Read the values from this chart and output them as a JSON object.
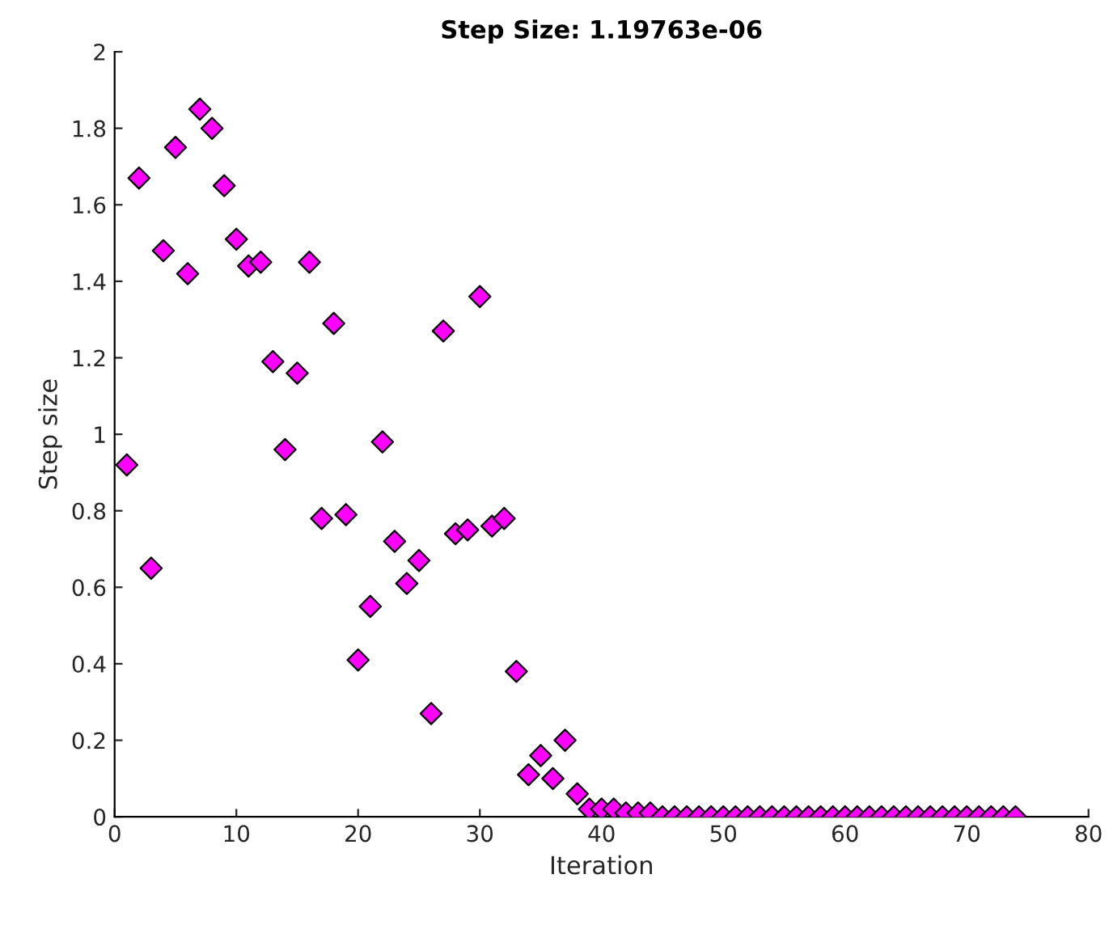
{
  "chart_data": {
    "type": "scatter",
    "title": "Step Size: 1.19763e-06",
    "xlabel": "Iteration",
    "ylabel": "Step size",
    "x": [
      1,
      2,
      3,
      4,
      5,
      6,
      7,
      8,
      9,
      10,
      11,
      12,
      13,
      14,
      15,
      16,
      17,
      18,
      19,
      20,
      21,
      22,
      23,
      24,
      25,
      26,
      27,
      28,
      29,
      30,
      31,
      32,
      33,
      34,
      35,
      36,
      37,
      38,
      39,
      40,
      41,
      42,
      43,
      44,
      45,
      46,
      47,
      48,
      49,
      50,
      51,
      52,
      53,
      54,
      55,
      56,
      57,
      58,
      59,
      60,
      61,
      62,
      63,
      64,
      65,
      66,
      67,
      68,
      69,
      70,
      71,
      72,
      73,
      74
    ],
    "series": [
      {
        "color": "#ff00ff",
        "values": [
          0.92,
          1.67,
          0.65,
          1.48,
          1.75,
          1.42,
          1.85,
          1.8,
          1.65,
          1.51,
          1.44,
          1.45,
          1.19,
          0.96,
          1.16,
          1.45,
          0.78,
          1.29,
          0.79,
          0.41,
          0.55,
          0.98,
          0.72,
          0.61,
          0.67,
          0.27,
          1.27,
          0.74,
          0.75,
          1.36,
          0.76,
          0.78,
          0.38,
          0.11,
          0.16,
          0.1,
          0.2,
          0.06,
          0.02,
          0.02,
          0.02,
          0.01,
          0.01,
          0.01,
          0,
          0,
          0,
          0,
          0,
          0,
          0,
          0,
          0,
          0,
          0,
          0,
          0,
          0,
          0,
          0,
          0,
          0,
          0,
          0,
          0,
          0,
          0,
          0,
          0,
          0,
          0,
          0,
          0,
          0
        ]
      }
    ],
    "marker": "diamond",
    "grid": false,
    "legend": false,
    "xlim": [
      0,
      80
    ],
    "xticks": [
      0,
      10,
      20,
      30,
      40,
      50,
      60,
      70,
      80
    ],
    "ylim": [
      0,
      2
    ],
    "yticks": [
      0,
      0.2,
      0.4,
      0.6,
      0.8,
      1,
      1.2,
      1.4,
      1.6,
      1.8,
      2
    ]
  }
}
